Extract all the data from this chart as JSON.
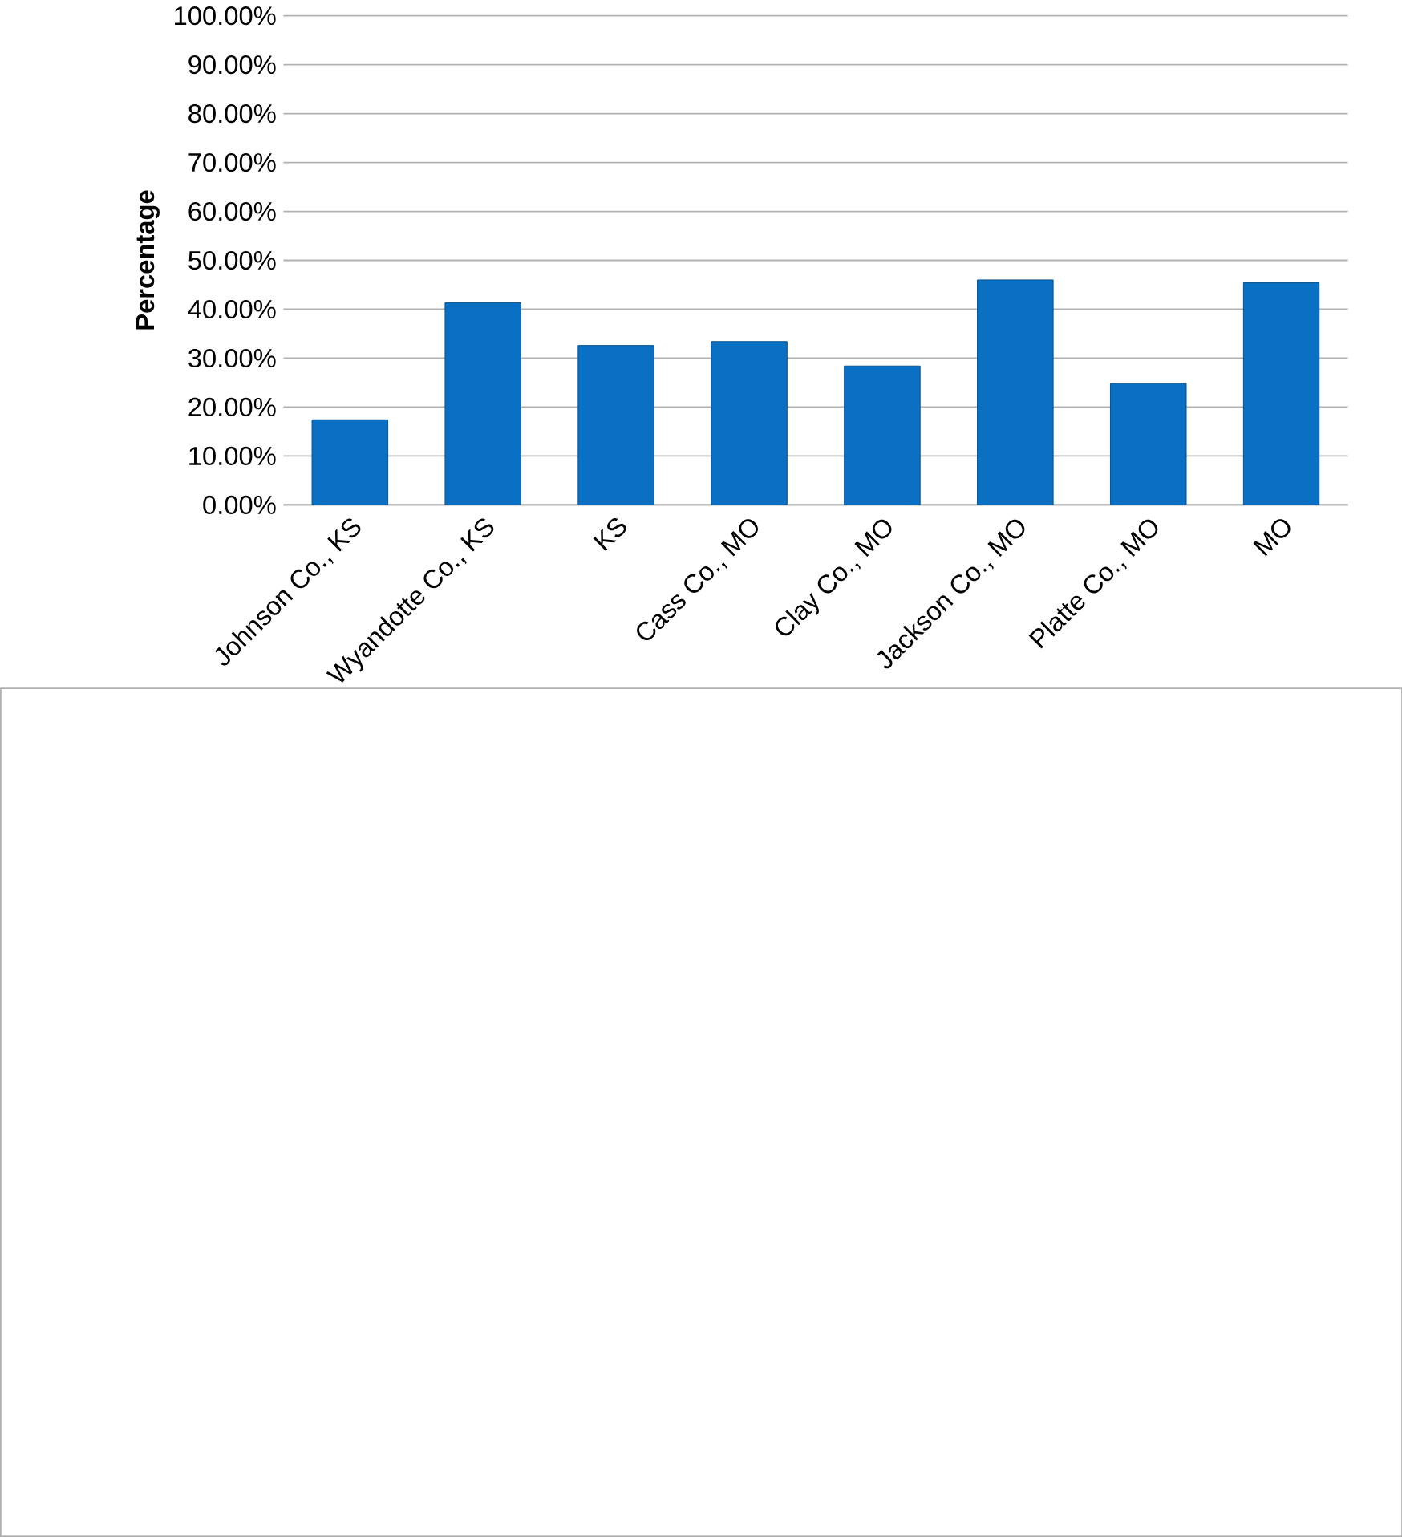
{
  "chart_data": {
    "type": "bar",
    "ylabel": "Percentage",
    "categories": [
      "Johnson Co., KS",
      "Wyandotte Co., KS",
      "KS",
      "Cass Co., MO",
      "Clay Co., MO",
      "Jackson Co., MO",
      "Platte Co., MO",
      "MO"
    ],
    "values": [
      17.4,
      41.3,
      32.6,
      33.4,
      28.4,
      46.0,
      24.8,
      45.4
    ],
    "color": "#0a70c4",
    "ylim": [
      0,
      100
    ],
    "yticks": [
      {
        "value": 0,
        "label": "0.00%"
      },
      {
        "value": 10,
        "label": "10.00%"
      },
      {
        "value": 20,
        "label": "20.00%"
      },
      {
        "value": 30,
        "label": "30.00%"
      },
      {
        "value": 40,
        "label": "40.00%"
      },
      {
        "value": 50,
        "label": "50.00%"
      },
      {
        "value": 60,
        "label": "60.00%"
      },
      {
        "value": 70,
        "label": "70.00%"
      },
      {
        "value": 80,
        "label": "80.00%"
      },
      {
        "value": 90,
        "label": "90.00%"
      },
      {
        "value": 100,
        "label": "100.00%"
      }
    ],
    "grid": "y"
  }
}
